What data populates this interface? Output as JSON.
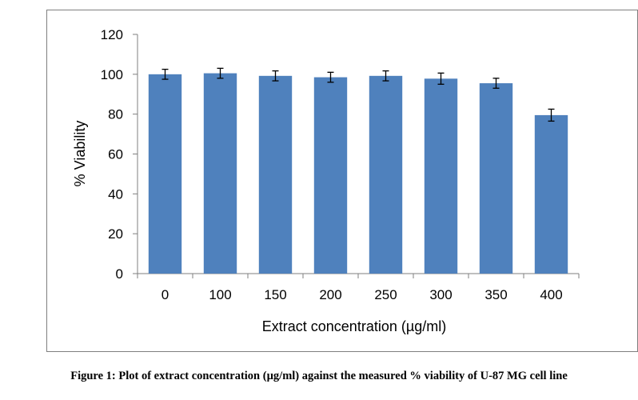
{
  "caption": "Figure 1: Plot of extract concentration (µg/ml) against the measured % viability of U-87 MG cell line",
  "colors": {
    "bar": "#4f81bd",
    "axis": "#7f7f7f",
    "frame": "#7f7f7f",
    "error_bar": "#000000"
  },
  "chart_data": {
    "type": "bar",
    "xlabel": "Extract concentration (µg/ml)",
    "ylabel": "% Viability",
    "categories": [
      "0",
      "100",
      "150",
      "200",
      "250",
      "300",
      "350",
      "400"
    ],
    "values": [
      100,
      100.5,
      99.2,
      98.5,
      99.2,
      97.8,
      95.5,
      79.5
    ],
    "error": [
      2.5,
      2.5,
      2.5,
      2.5,
      2.5,
      2.8,
      2.5,
      3.0
    ],
    "ylim": [
      0,
      120
    ],
    "yticks": [
      0,
      20,
      40,
      60,
      80,
      100,
      120
    ],
    "grid": false,
    "legend": "none"
  }
}
